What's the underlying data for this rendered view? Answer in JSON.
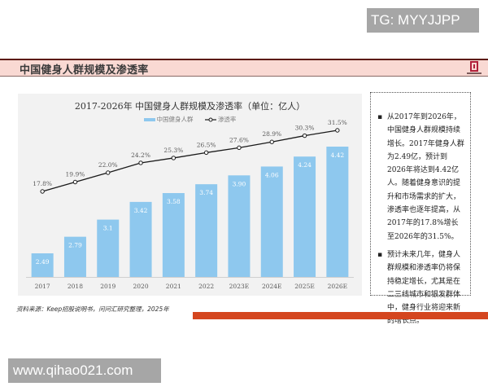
{
  "watermarks": {
    "top": "TG: MYYJJPP",
    "bottom": "www.qihao021.com"
  },
  "header": {
    "title": "中国健身人群规模及渗透率",
    "logo_icon": "brand-logo-icon"
  },
  "chart": {
    "title": "2017-2026年 中国健身人群规模及渗透率（单位：亿人）",
    "legend": [
      "中国健身人群",
      "渗透率"
    ]
  },
  "chart_data": {
    "type": "bar+line",
    "title": "2017-2026年 中国健身人群规模及渗透率（单位：亿人）",
    "categories": [
      "2017",
      "2018",
      "2019",
      "2020",
      "2021",
      "2022",
      "2023E",
      "2024E",
      "2025E",
      "2026E"
    ],
    "series": [
      {
        "name": "中国健身人群",
        "type": "bar",
        "unit": "亿人",
        "color": "#8ec8ee",
        "values": [
          2.49,
          2.79,
          3.1,
          3.42,
          3.58,
          3.74,
          3.9,
          4.06,
          4.24,
          4.42
        ],
        "labels": [
          "2.49",
          "2.79",
          "3.1",
          "3.42",
          "3.58",
          "3.74",
          "3.90",
          "4.06",
          "4.24",
          "4.42"
        ]
      },
      {
        "name": "渗透率",
        "type": "line",
        "unit": "%",
        "color": "#1a1a1a",
        "values": [
          17.8,
          19.9,
          22.0,
          24.2,
          25.3,
          26.5,
          27.6,
          28.9,
          30.3,
          31.5
        ],
        "labels": [
          "17.8%",
          "19.9%",
          "22.0%",
          "24.2%",
          "25.3%",
          "26.5%",
          "27.6%",
          "28.9%",
          "30.3%",
          "31.5%"
        ]
      }
    ],
    "legend_position": "top",
    "grid": false,
    "xlabel": "",
    "ylabel": ""
  },
  "side_text": {
    "bullets": [
      "从2017年到2026年，中国健身人群规模持续增长。2017年健身人群为2.49亿，预计到2026年将达到4.42亿人。随着健身意识的提升和市场需求的扩大，渗透率也逐年提高，从2017年的17.8%增长至2026年的31.5%。",
      "预计未来几年，健身人群规模和渗透率仍将保持稳定增长，尤其是在二三线城市和银发群体中，健身行业将迎来新的增长点。"
    ],
    "bullet_symbol": "▪"
  },
  "source": "资料来源：Keep招股说明书，问问汇研究整理，2025年",
  "colors": {
    "header_bg": "#f9d9d3",
    "header_border": "#5c1a12",
    "bar": "#8ec8ee",
    "line": "#1a1a1a",
    "footer_bar": "#d4461f",
    "panel_bg": "#f2f2f2"
  }
}
